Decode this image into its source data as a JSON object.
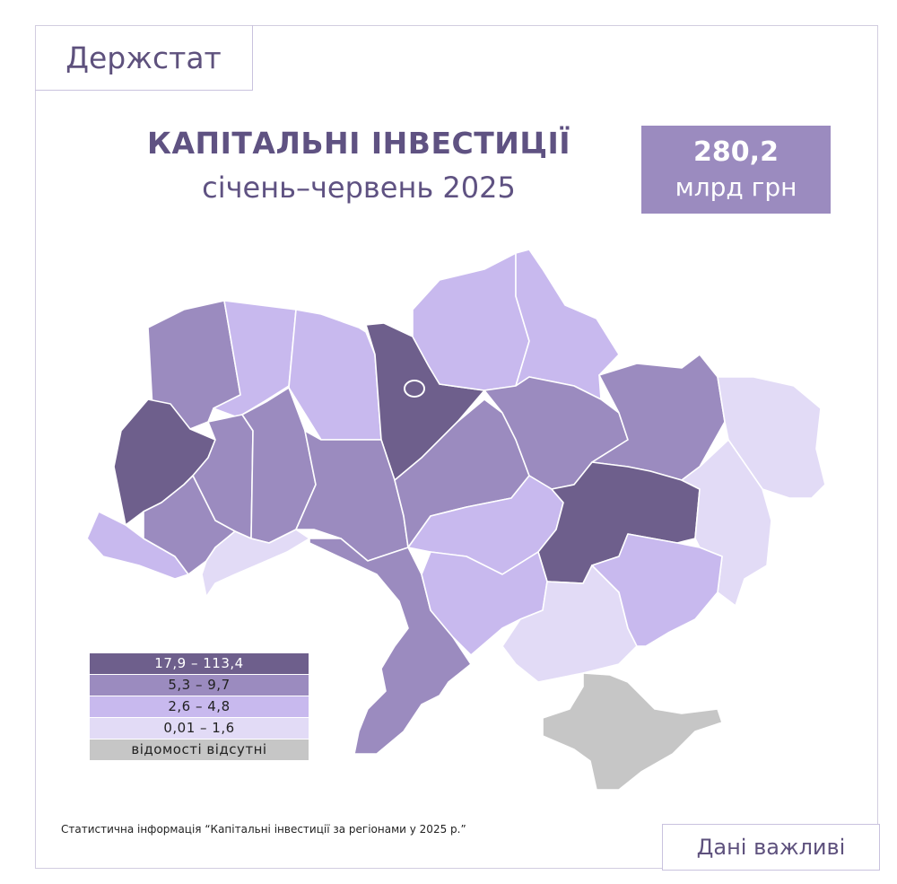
{
  "header": {
    "logo_text": "Держстат"
  },
  "title": "КАПІТАЛЬНІ ІНВЕСТИЦІЇ",
  "subtitle": "січень–червень 2025",
  "total": {
    "value": "280,2",
    "unit": "млрд грн"
  },
  "legend": [
    {
      "label": "17,9 – 113,4",
      "color": "#6e5f8c",
      "text_color": "#ffffff"
    },
    {
      "label": "5,3 – 9,7",
      "color": "#9b8bbf",
      "text_color": "#222222"
    },
    {
      "label": "2,6 – 4,8",
      "color": "#c8b9ee",
      "text_color": "#222222"
    },
    {
      "label": "0,01 – 1,6",
      "color": "#e2dbf6",
      "text_color": "#222222"
    },
    {
      "label": "відомості відсутні",
      "color": "#c6c6c6",
      "text_color": "#222222"
    }
  ],
  "colors": {
    "high": "#6e5f8c",
    "mid": "#9b8bbf",
    "low": "#c8b9ee",
    "lowest": "#e2dbf6",
    "nodata": "#c6c6c6"
  },
  "map": {
    "regions": [
      {
        "name": "volynska",
        "class": "mid"
      },
      {
        "name": "rivnenska",
        "class": "low"
      },
      {
        "name": "zhytomyrska",
        "class": "low"
      },
      {
        "name": "kyivska",
        "class": "high"
      },
      {
        "name": "chernihivska",
        "class": "low"
      },
      {
        "name": "sumska",
        "class": "low"
      },
      {
        "name": "lvivska",
        "class": "high"
      },
      {
        "name": "ternopilska",
        "class": "mid"
      },
      {
        "name": "khmelnytska",
        "class": "mid"
      },
      {
        "name": "vinnytska",
        "class": "mid"
      },
      {
        "name": "cherkaska",
        "class": "mid"
      },
      {
        "name": "poltavska",
        "class": "mid"
      },
      {
        "name": "kharkivska",
        "class": "mid"
      },
      {
        "name": "luhanska",
        "class": "lowest"
      },
      {
        "name": "zakarpatska",
        "class": "low"
      },
      {
        "name": "ivano-frankivska",
        "class": "mid"
      },
      {
        "name": "chernivetska",
        "class": "lowest"
      },
      {
        "name": "kirovohradska",
        "class": "low"
      },
      {
        "name": "dnipropetrovska",
        "class": "high"
      },
      {
        "name": "donetska",
        "class": "lowest"
      },
      {
        "name": "odeska",
        "class": "mid"
      },
      {
        "name": "mykolaivska",
        "class": "low"
      },
      {
        "name": "khersonska",
        "class": "lowest"
      },
      {
        "name": "zaporizka",
        "class": "low"
      },
      {
        "name": "crimea",
        "class": "nodata"
      }
    ]
  },
  "footnote": "Статистична інформація “Капітальні інвестиції за регіонами у 2025 р.”",
  "button_label": "Дані важливі"
}
